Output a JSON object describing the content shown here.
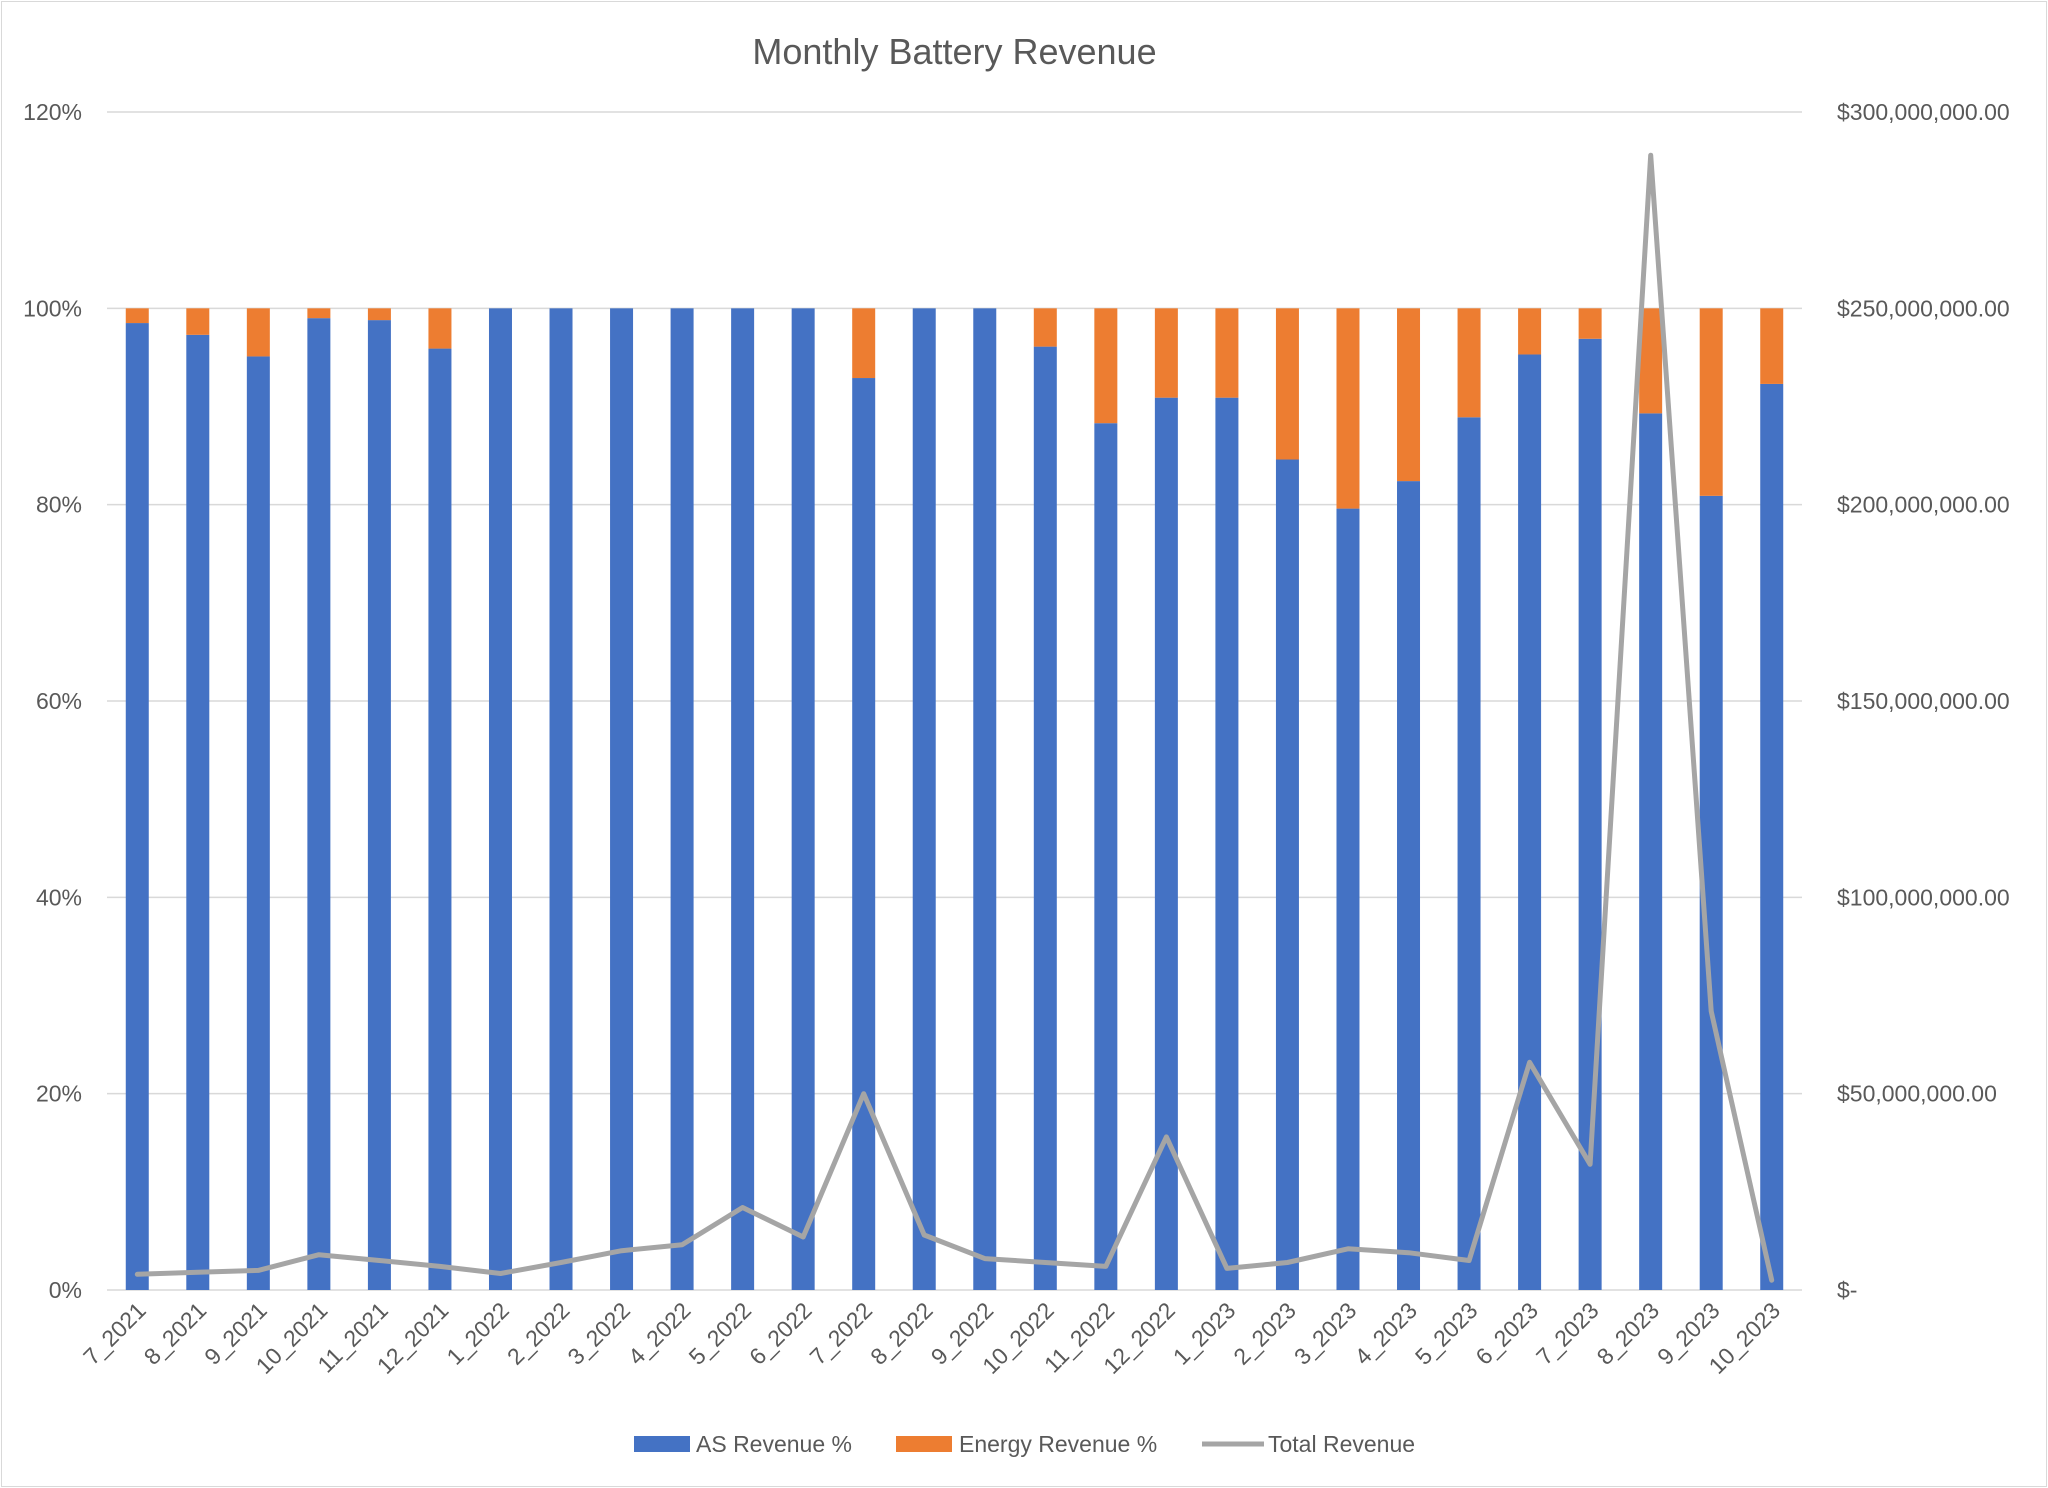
{
  "chart_data": {
    "type": "bar",
    "stacked": true,
    "title": "Monthly Battery Revenue",
    "categories": [
      "7_2021",
      "8_2021",
      "9_2021",
      "10_2021",
      "11_2021",
      "12_2021",
      "1_2022",
      "2_2022",
      "3_2022",
      "4_2022",
      "5_2022",
      "6_2022",
      "7_2022",
      "8_2022",
      "9_2022",
      "10_2022",
      "11_2022",
      "12_2022",
      "1_2023",
      "2_2023",
      "3_2023",
      "4_2023",
      "5_2023",
      "6_2023",
      "7_2023",
      "8_2023",
      "9_2023",
      "10_2023"
    ],
    "series": [
      {
        "name": "AS Revenue %",
        "type": "bar",
        "axis": "left",
        "color": "#4472C4",
        "values": [
          0.985,
          0.973,
          0.951,
          0.99,
          0.988,
          0.959,
          1.0,
          1.0,
          1.0,
          1.0,
          1.0,
          1.0,
          0.929,
          1.0,
          1.0,
          0.961,
          0.883,
          0.909,
          0.909,
          0.846,
          0.796,
          0.824,
          0.889,
          0.953,
          0.969,
          0.893,
          0.809,
          0.923
        ]
      },
      {
        "name": "Energy Revenue %",
        "type": "bar",
        "axis": "left",
        "color": "#ED7D31",
        "values": [
          0.015,
          0.027,
          0.049,
          0.01,
          0.012,
          0.041,
          0.0,
          0.0,
          0.0,
          0.0,
          0.0,
          0.0,
          0.071,
          0.0,
          0.0,
          0.039,
          0.117,
          0.091,
          0.091,
          0.154,
          0.204,
          0.176,
          0.111,
          0.047,
          0.031,
          0.107,
          0.191,
          0.077
        ]
      },
      {
        "name": "Total Revenue",
        "type": "line",
        "axis": "right",
        "color": "#A5A5A5",
        "values": [
          4000000,
          4500000,
          5000000,
          9000000,
          7500000,
          6000000,
          4200000,
          7000000,
          10000000,
          11500000,
          21000000,
          13500000,
          50000000,
          14000000,
          8000000,
          7000000,
          6000000,
          39000000,
          5500000,
          7000000,
          10500000,
          9500000,
          7500000,
          58000000,
          32000000,
          289000000,
          71000000,
          2500000
        ]
      }
    ],
    "y_left": {
      "min": 0,
      "max": 1.2,
      "step": 0.2,
      "tick_labels": [
        "0%",
        "20%",
        "40%",
        "60%",
        "80%",
        "100%",
        "120%"
      ]
    },
    "y_right": {
      "min": 0,
      "max": 300000000,
      "step": 50000000,
      "tick_labels": [
        "$-",
        "$50,000,000.00",
        "$100,000,000.00",
        "$150,000,000.00",
        "$200,000,000.00",
        "$250,000,000.00",
        "$300,000,000.00"
      ]
    },
    "grid": true,
    "legend": "bottom"
  }
}
